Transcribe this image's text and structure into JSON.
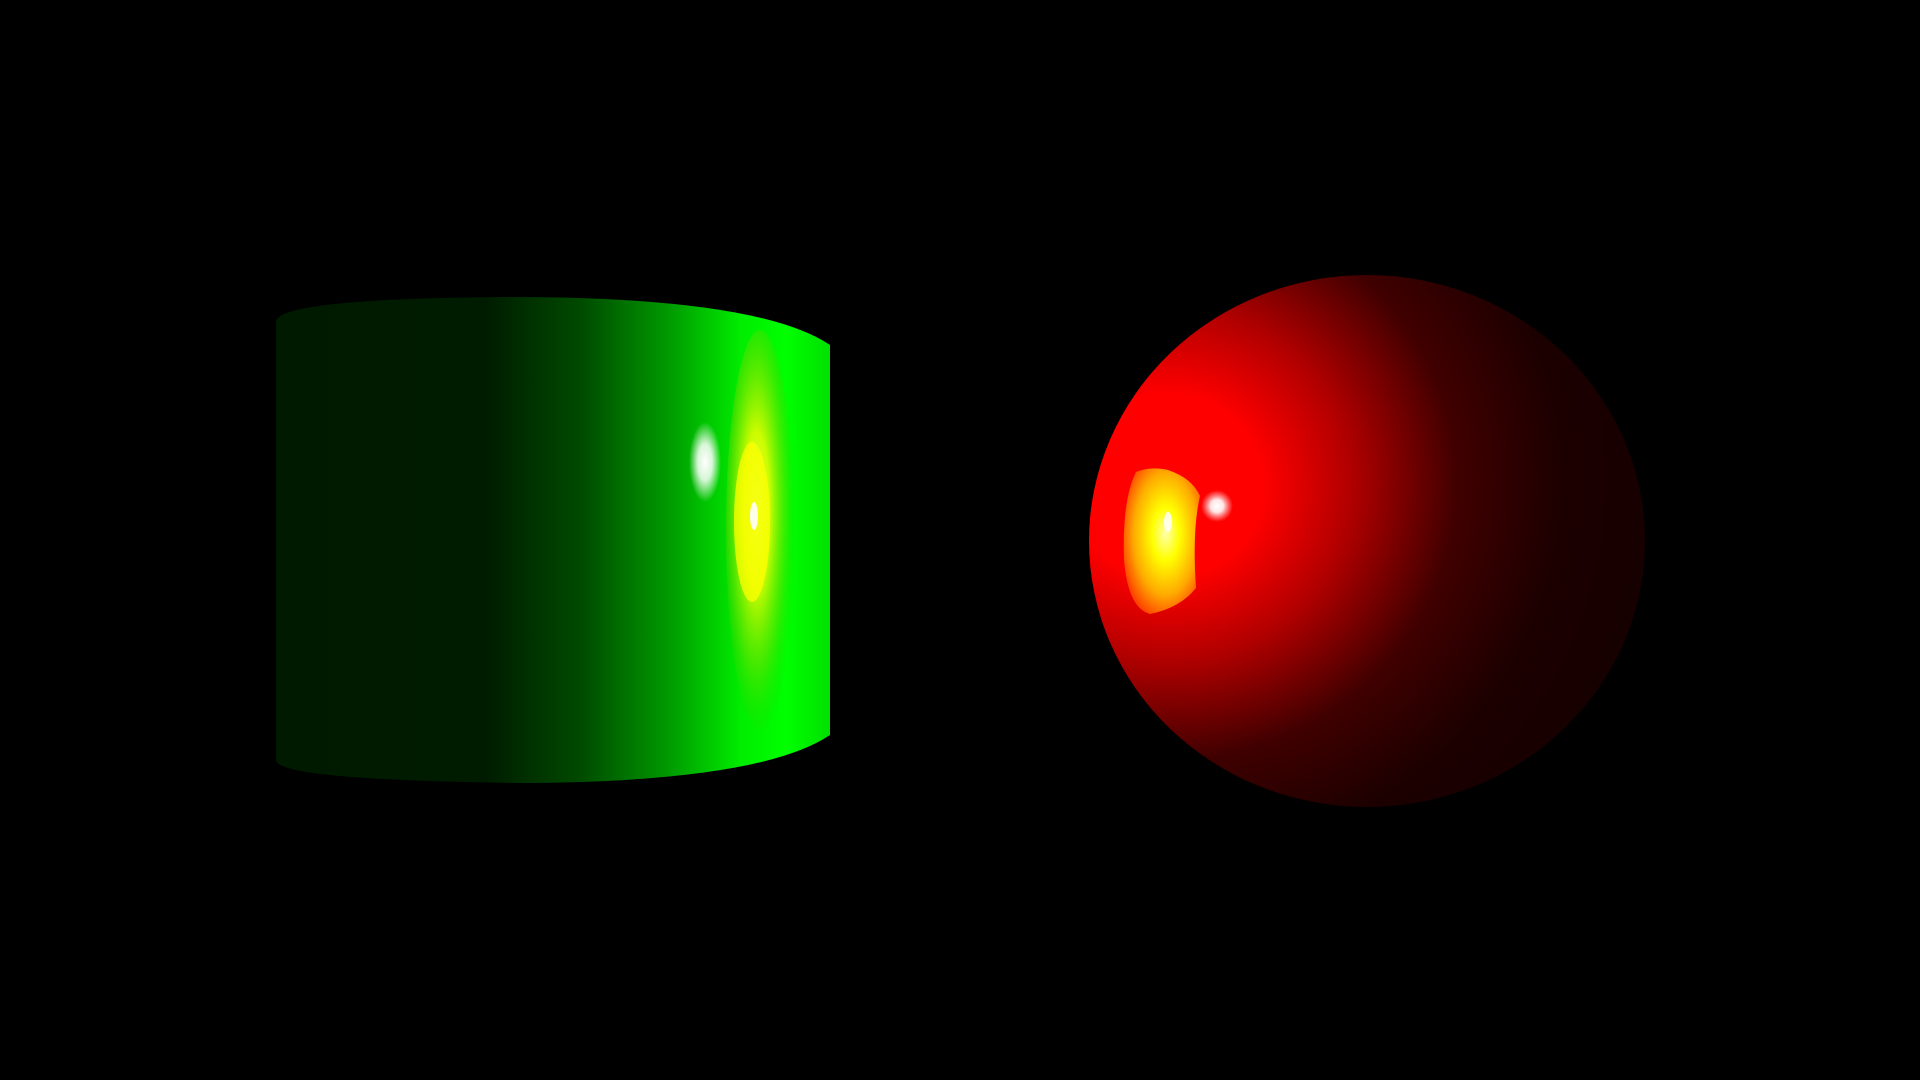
{
  "scene": {
    "background_color": "#000000",
    "objects": [
      {
        "kind": "cylinder",
        "base_color": "#00ff00",
        "shadow_color": "#001a00",
        "specular_color": "#ffffff",
        "reflection_color": "#ffff00"
      },
      {
        "kind": "sphere",
        "base_color": "#ff0000",
        "shadow_color": "#140000",
        "specular_color": "#ffffff",
        "reflection_color": "#ffff00"
      }
    ]
  }
}
